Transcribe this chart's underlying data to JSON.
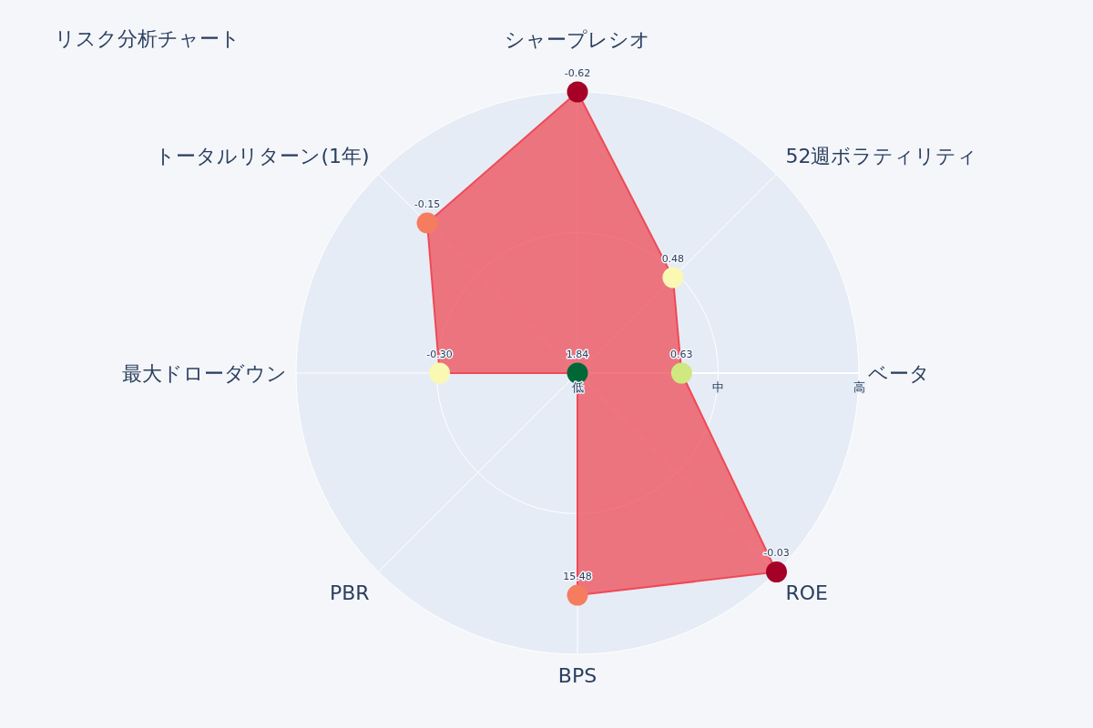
{
  "chart_data": {
    "type": "radar",
    "title": "リスク分析チャート",
    "categories": [
      "シャープレシオ",
      "52週ボラティリティ",
      "ベータ",
      "ROE",
      "BPS",
      "PBR",
      "最大ドローダウン",
      "トータルリターン(1年)"
    ],
    "series": [
      {
        "color": "#ef4a55",
        "values": [
          2,
          0.96,
          0.74,
          2,
          1.58,
          0,
          0.98,
          1.51
        ],
        "colors": [
          "#a50026",
          "#f9f9b4",
          "#cfe87f",
          "#a50026",
          "#f67c5f",
          "#006837",
          "#f9f9b4",
          "#f67c5f"
        ]
      }
    ],
    "annotations": [
      {
        "text": "-0.62",
        "x": "シャープレシオ"
      },
      {
        "text": "0.48",
        "x": "52週ボラティリティ"
      },
      {
        "text": "0.63",
        "x": "ベータ"
      },
      {
        "text": "-0.03",
        "x": "ROE"
      },
      {
        "text": "15.48",
        "x": "BPS"
      },
      {
        "text": "1.84",
        "x": "PBR"
      },
      {
        "text": "-0.30",
        "x": "最大ドローダウン"
      },
      {
        "text": "-0.15",
        "x": "トータルリターン(1年)"
      }
    ],
    "ylim": [
      0,
      2
    ],
    "yticks": [
      {
        "value": 0,
        "label": "低"
      },
      {
        "value": 1,
        "label": "中"
      },
      {
        "value": 2,
        "label": "高"
      }
    ],
    "grid": true,
    "marker": "circle"
  }
}
